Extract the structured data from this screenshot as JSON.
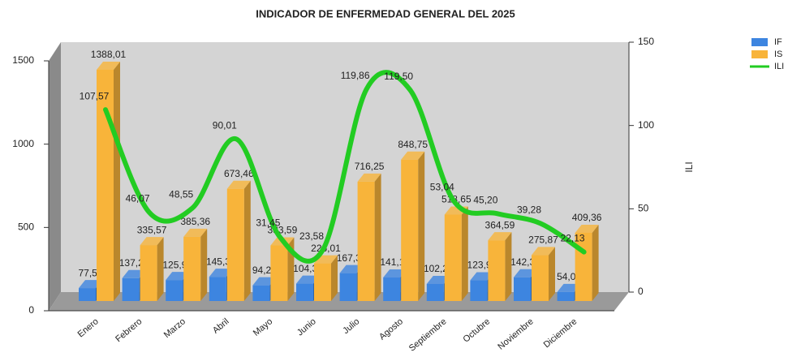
{
  "chart_data": {
    "type": "bar",
    "title": "INDICADOR DE ENFERMEDAD GENERAL DEL 2025",
    "categories": [
      "Enero",
      "Febrero",
      "Marzo",
      "Abril",
      "Mayo",
      "Junio",
      "Julio",
      "Agosto",
      "Septiembre",
      "Octubre",
      "Noviembre",
      "Diciembre"
    ],
    "series": [
      {
        "name": "IF",
        "color": "#3d85e0",
        "values": [
          77.5,
          137.28,
          125.98,
          145.3,
          94.27,
          104.31,
          167.35,
          141.13,
          102.27,
          123.96,
          142.39,
          54.07
        ],
        "value_labels": [
          "77,50",
          "137,28",
          "125,98",
          "145,30",
          "94,27",
          "104,31",
          "167,35",
          "141,13",
          "102,27",
          "123,96",
          "142,39",
          "54,07"
        ]
      },
      {
        "name": "IS",
        "color": "#f8b43a",
        "values": [
          1388.01,
          335.57,
          385.36,
          673.46,
          333.59,
          226.01,
          716.25,
          848.75,
          518.65,
          364.59,
          275.87,
          409.36
        ],
        "value_labels": [
          "1388,01",
          "335,57",
          "385,36",
          "673,46",
          "333,59",
          "226,01",
          "716,25",
          "848,75",
          "518,65",
          "364,59",
          "275,87",
          "409,36"
        ]
      },
      {
        "name": "ILI",
        "color": "#22cc22",
        "type": "line",
        "axis": "y2",
        "values": [
          107.57,
          46.07,
          48.55,
          90.01,
          31.45,
          23.58,
          119.86,
          119.5,
          53.04,
          45.2,
          39.28,
          22.13
        ],
        "value_labels": [
          "107,57",
          "46,07",
          "48,55",
          "90,01",
          "31,45",
          "23,58",
          "119,86",
          "119,50",
          "53,04",
          "45,20",
          "39,28",
          "22,13"
        ]
      }
    ],
    "ylim": [
      0,
      1500
    ],
    "yticks": [
      0,
      500,
      1000,
      1500
    ],
    "y2lim": [
      0,
      150
    ],
    "y2ticks": [
      0,
      50,
      100,
      150
    ],
    "y2_label": "ILI",
    "legend": "top-right"
  }
}
